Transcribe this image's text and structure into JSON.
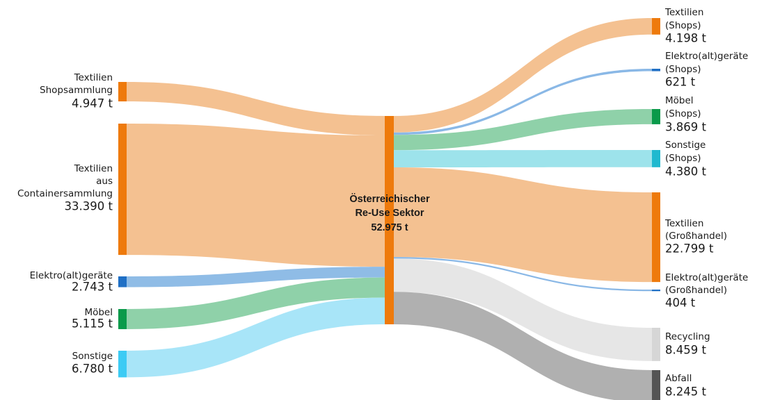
{
  "chart_data": {
    "type": "sankey",
    "center": {
      "name": [
        "Österreichischer",
        "Re-Use Sektor"
      ],
      "value": 52975,
      "value_label": "52.975 t",
      "color": "#ee7a0c"
    },
    "sources": {
      "names": [
        [
          "Textilien",
          "Shopsammlung"
        ],
        [
          "Textilien",
          "aus",
          "Containersammlung"
        ],
        [
          "Elektro(alt)geräte"
        ],
        [
          "Möbel"
        ],
        [
          "Sonstige"
        ]
      ],
      "values": [
        4947,
        33390,
        2743,
        5115,
        6780
      ],
      "value_labels": [
        "4.947 t",
        "33.390 t",
        "2.743 t",
        "5.115 t",
        "6.780 t"
      ],
      "colors": [
        "#ee7a0c",
        "#ee7a0c",
        "#1f6fc5",
        "#0a9a4a",
        "#3ccbf4"
      ],
      "link_colors": [
        "#f4c191",
        "#f4c191",
        "#8fbce6",
        "#8fd1a9",
        "#a8e5f8"
      ]
    },
    "targets": {
      "names": [
        [
          "Textilien",
          "(Shops)"
        ],
        [
          "Elektro(alt)geräte",
          "(Shops)"
        ],
        [
          "Möbel",
          "(Shops)"
        ],
        [
          "Sonstige",
          "(Shops)"
        ],
        [
          "Textilien",
          "(Großhandel)"
        ],
        [
          "Elektro(alt)geräte",
          "(Großhandel)"
        ],
        [
          "Recycling"
        ],
        [
          "Abfall"
        ]
      ],
      "values": [
        4198,
        621,
        3869,
        4380,
        22799,
        404,
        8459,
        8245
      ],
      "value_labels": [
        "4.198 t",
        "621 t",
        "3.869 t",
        "4.380 t",
        "22.799 t",
        "404 t",
        "8.459 t",
        "8.245 t"
      ],
      "colors": [
        "#ee7a0c",
        "#1f6fc5",
        "#0a9a4a",
        "#1fb9cf",
        "#ee7a0c",
        "#1f6fc5",
        "#d6d6d6",
        "#555555"
      ],
      "link_colors": [
        "#f4c191",
        "#8ab8e6",
        "#8fd1a9",
        "#9de3eb",
        "#f4c191",
        "#8ab8e6",
        "#e6e6e6",
        "#b0b0b0"
      ]
    }
  }
}
